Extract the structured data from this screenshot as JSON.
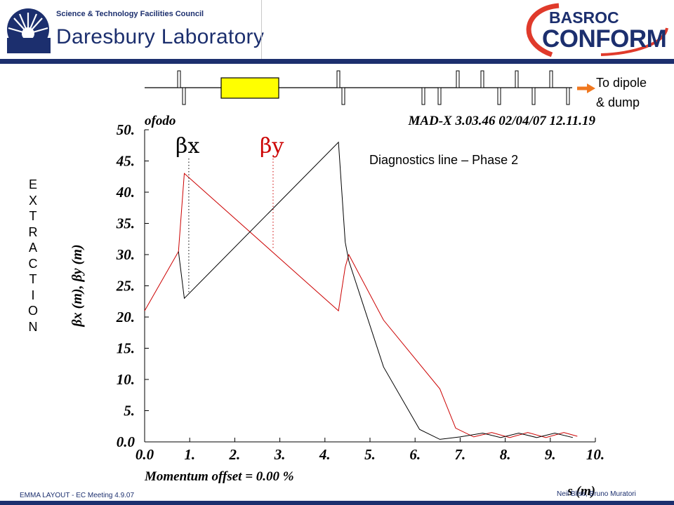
{
  "header": {
    "org_small": "Science & Technology Facilities Council",
    "org_big": "Daresbury Laboratory",
    "logo_top": "BASROC",
    "logo_bottom": "CONFORM"
  },
  "side_label": [
    "E",
    "X",
    "T",
    "R",
    "A",
    "C",
    "T",
    "I",
    "O",
    "N"
  ],
  "annotation": {
    "line1": "To dipole",
    "line2": "& dump"
  },
  "plot_title": "Diagnostics line – Phase 2",
  "footer": {
    "left": "EMMA LAYOUT  -  EC Meeting 4.9.07",
    "right": "Neil Bliss, Bruno Muratori"
  },
  "colors": {
    "navy": "#1c2f6e",
    "beta_x": "#000000",
    "beta_y": "#cc0000",
    "dipole": "#ffff00",
    "arrow": "#f07820"
  },
  "chart_data": {
    "type": "line",
    "title_left": "ofodo",
    "title_right": "MAD-X 3.03.46  02/04/07 12.11.19",
    "xlabel": "s (m)",
    "ylabel": "βx (m), βy (m)",
    "sub_label": "Momentum offset =    0.00 %",
    "xlim": [
      0,
      10
    ],
    "ylim": [
      0,
      50
    ],
    "x_ticks": [
      "0.0",
      "1.",
      "2.",
      "3.",
      "4.",
      "5.",
      "6.",
      "7.",
      "8.",
      "9.",
      "10."
    ],
    "y_ticks": [
      "0.0",
      "5.",
      "10.",
      "15.",
      "20.",
      "25.",
      "30.",
      "35.",
      "40.",
      "45.",
      "50."
    ],
    "legend": [
      "βx",
      "βy"
    ],
    "series": [
      {
        "name": "βx",
        "color": "#000000",
        "x": [
          0.75,
          0.88,
          4.3,
          4.45,
          4.53,
          5.3,
          6.1,
          6.55,
          7.0,
          7.5,
          7.9,
          8.3,
          8.7,
          9.1,
          9.5
        ],
        "y": [
          30.5,
          23,
          48,
          32,
          29,
          12,
          2,
          0.4,
          0.8,
          1.4,
          0.7,
          1.4,
          0.7,
          1.4,
          0.7
        ]
      },
      {
        "name": "βy",
        "color": "#cc0000",
        "x": [
          0.0,
          0.75,
          0.88,
          4.3,
          4.45,
          4.53,
          5.3,
          6.55,
          6.9,
          7.3,
          7.7,
          8.1,
          8.5,
          8.9,
          9.3,
          9.6
        ],
        "y": [
          21,
          30.5,
          43,
          21,
          28,
          30,
          19.5,
          8.5,
          2.2,
          0.8,
          1.5,
          0.7,
          1.5,
          0.7,
          1.5,
          0.9
        ]
      }
    ],
    "markers": [
      {
        "label": "βx",
        "s": 0.98,
        "beta": 24
      },
      {
        "label": "βy",
        "s": 2.85,
        "beta": 31
      }
    ]
  }
}
